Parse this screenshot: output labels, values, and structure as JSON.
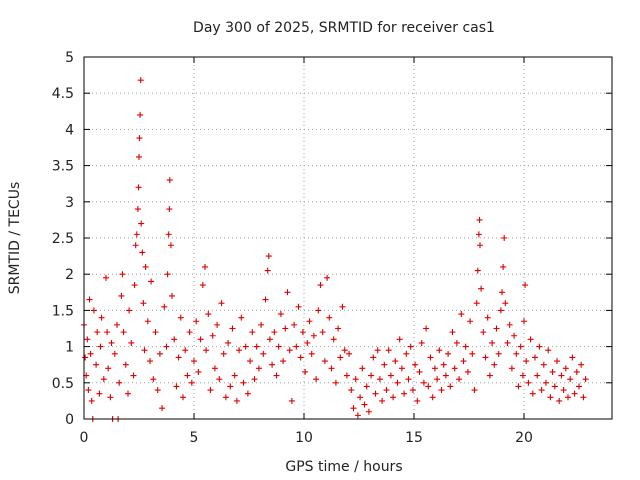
{
  "chart_data": {
    "type": "scatter",
    "title": "Day 300 of 2025, SRMTID for receiver cas1",
    "xlabel": "GPS time / hours",
    "ylabel": "SRMTID / TECUs",
    "xlim": [
      0,
      24
    ],
    "ylim": [
      0,
      5
    ],
    "x_ticks": [
      0,
      5,
      10,
      15,
      20
    ],
    "x_tick_labels": [
      "0",
      "5",
      "10",
      "15",
      "20"
    ],
    "y_ticks": [
      0,
      0.5,
      1,
      1.5,
      2,
      2.5,
      3,
      3.5,
      4,
      4.5,
      5
    ],
    "y_tick_labels": [
      "0",
      "0.5",
      "1",
      "1.5",
      "2",
      "2.5",
      "3",
      "3.5",
      "4",
      "4.5",
      "5"
    ],
    "grid": true,
    "marker": "plus",
    "series_color": "#e00000",
    "series": [
      {
        "name": "SRMTID",
        "points": [
          [
            0.0,
            1.3
          ],
          [
            0.05,
            0.85
          ],
          [
            0.1,
            0.6
          ],
          [
            0.15,
            1.1
          ],
          [
            0.2,
            0.4
          ],
          [
            0.25,
            1.65
          ],
          [
            0.3,
            0.9
          ],
          [
            0.35,
            0.25
          ],
          [
            0.4,
            0.0
          ],
          [
            0.45,
            1.5
          ],
          [
            0.55,
            0.75
          ],
          [
            0.6,
            1.2
          ],
          [
            0.7,
            0.35
          ],
          [
            0.75,
            1.0
          ],
          [
            0.8,
            1.4
          ],
          [
            0.9,
            0.55
          ],
          [
            1.0,
            1.95
          ],
          [
            1.05,
            1.2
          ],
          [
            1.1,
            0.7
          ],
          [
            1.2,
            0.3
          ],
          [
            1.25,
            1.05
          ],
          [
            1.3,
            0.0
          ],
          [
            1.4,
            0.9
          ],
          [
            1.5,
            1.3
          ],
          [
            1.55,
            0.0
          ],
          [
            1.6,
            0.5
          ],
          [
            1.7,
            1.7
          ],
          [
            1.75,
            2.0
          ],
          [
            1.8,
            1.2
          ],
          [
            1.9,
            0.75
          ],
          [
            2.0,
            0.35
          ],
          [
            2.05,
            1.5
          ],
          [
            2.15,
            1.05
          ],
          [
            2.25,
            0.6
          ],
          [
            2.3,
            1.85
          ],
          [
            2.35,
            2.4
          ],
          [
            2.4,
            2.55
          ],
          [
            2.45,
            2.9
          ],
          [
            2.48,
            3.2
          ],
          [
            2.5,
            3.62
          ],
          [
            2.52,
            3.88
          ],
          [
            2.55,
            4.2
          ],
          [
            2.58,
            4.68
          ],
          [
            2.6,
            2.7
          ],
          [
            2.65,
            2.3
          ],
          [
            2.7,
            1.6
          ],
          [
            2.75,
            0.95
          ],
          [
            2.8,
            2.1
          ],
          [
            2.9,
            1.35
          ],
          [
            3.0,
            0.8
          ],
          [
            3.05,
            1.9
          ],
          [
            3.15,
            0.55
          ],
          [
            3.25,
            1.2
          ],
          [
            3.35,
            0.4
          ],
          [
            3.45,
            0.9
          ],
          [
            3.55,
            0.15
          ],
          [
            3.65,
            1.55
          ],
          [
            3.75,
            1.0
          ],
          [
            3.8,
            2.0
          ],
          [
            3.85,
            2.55
          ],
          [
            3.88,
            2.9
          ],
          [
            3.9,
            3.3
          ],
          [
            3.95,
            2.4
          ],
          [
            4.0,
            1.7
          ],
          [
            4.1,
            1.1
          ],
          [
            4.2,
            0.45
          ],
          [
            4.3,
            0.85
          ],
          [
            4.4,
            1.4
          ],
          [
            4.5,
            0.3
          ],
          [
            4.6,
            0.95
          ],
          [
            4.7,
            0.6
          ],
          [
            4.8,
            1.2
          ],
          [
            4.9,
            0.5
          ],
          [
            5.0,
            0.8
          ],
          [
            5.1,
            1.35
          ],
          [
            5.2,
            0.65
          ],
          [
            5.3,
            1.1
          ],
          [
            5.4,
            1.85
          ],
          [
            5.5,
            2.1
          ],
          [
            5.55,
            0.95
          ],
          [
            5.65,
            1.45
          ],
          [
            5.75,
            0.4
          ],
          [
            5.85,
            1.15
          ],
          [
            5.95,
            0.7
          ],
          [
            6.05,
            1.3
          ],
          [
            6.15,
            0.55
          ],
          [
            6.25,
            1.6
          ],
          [
            6.35,
            0.9
          ],
          [
            6.45,
            0.3
          ],
          [
            6.55,
            1.05
          ],
          [
            6.65,
            0.45
          ],
          [
            6.75,
            1.25
          ],
          [
            6.85,
            0.6
          ],
          [
            6.95,
            0.25
          ],
          [
            7.05,
            0.95
          ],
          [
            7.15,
            1.4
          ],
          [
            7.25,
            0.5
          ],
          [
            7.35,
            1.0
          ],
          [
            7.45,
            0.35
          ],
          [
            7.55,
            0.8
          ],
          [
            7.65,
            1.2
          ],
          [
            7.75,
            0.55
          ],
          [
            7.85,
            1.0
          ],
          [
            7.95,
            0.7
          ],
          [
            8.05,
            1.3
          ],
          [
            8.15,
            0.9
          ],
          [
            8.25,
            1.65
          ],
          [
            8.35,
            2.05
          ],
          [
            8.4,
            2.25
          ],
          [
            8.45,
            1.1
          ],
          [
            8.55,
            0.75
          ],
          [
            8.65,
            1.2
          ],
          [
            8.75,
            0.6
          ],
          [
            8.85,
            1.0
          ],
          [
            8.95,
            1.45
          ],
          [
            9.05,
            0.8
          ],
          [
            9.15,
            1.25
          ],
          [
            9.25,
            1.75
          ],
          [
            9.35,
            0.95
          ],
          [
            9.45,
            0.25
          ],
          [
            9.55,
            1.3
          ],
          [
            9.65,
            1.0
          ],
          [
            9.75,
            1.55
          ],
          [
            9.85,
            0.85
          ],
          [
            9.95,
            1.2
          ],
          [
            10.05,
            0.65
          ],
          [
            10.15,
            1.05
          ],
          [
            10.25,
            1.35
          ],
          [
            10.35,
            0.9
          ],
          [
            10.45,
            1.15
          ],
          [
            10.55,
            0.55
          ],
          [
            10.65,
            1.5
          ],
          [
            10.75,
            1.85
          ],
          [
            10.85,
            1.2
          ],
          [
            10.95,
            0.8
          ],
          [
            11.05,
            1.95
          ],
          [
            11.15,
            1.4
          ],
          [
            11.25,
            0.7
          ],
          [
            11.35,
            1.1
          ],
          [
            11.45,
            0.5
          ],
          [
            11.55,
            1.25
          ],
          [
            11.65,
            0.85
          ],
          [
            11.75,
            1.55
          ],
          [
            11.85,
            0.95
          ],
          [
            11.95,
            0.6
          ],
          [
            12.05,
            0.9
          ],
          [
            12.15,
            0.4
          ],
          [
            12.25,
            0.15
          ],
          [
            12.35,
            0.55
          ],
          [
            12.45,
            0.05
          ],
          [
            12.55,
            0.3
          ],
          [
            12.65,
            0.7
          ],
          [
            12.75,
            0.2
          ],
          [
            12.85,
            0.45
          ],
          [
            12.95,
            0.1
          ],
          [
            13.05,
            0.6
          ],
          [
            13.15,
            0.85
          ],
          [
            13.25,
            0.35
          ],
          [
            13.35,
            0.95
          ],
          [
            13.45,
            0.55
          ],
          [
            13.55,
            0.25
          ],
          [
            13.65,
            0.75
          ],
          [
            13.75,
            0.4
          ],
          [
            13.85,
            0.95
          ],
          [
            13.95,
            0.6
          ],
          [
            14.05,
            0.3
          ],
          [
            14.15,
            0.8
          ],
          [
            14.25,
            0.5
          ],
          [
            14.35,
            1.1
          ],
          [
            14.45,
            0.7
          ],
          [
            14.55,
            0.35
          ],
          [
            14.65,
            0.9
          ],
          [
            14.75,
            0.55
          ],
          [
            14.85,
            1.0
          ],
          [
            14.95,
            0.4
          ],
          [
            15.05,
            0.75
          ],
          [
            15.15,
            0.25
          ],
          [
            15.25,
            0.65
          ],
          [
            15.35,
            1.05
          ],
          [
            15.45,
            0.5
          ],
          [
            15.55,
            1.25
          ],
          [
            15.65,
            0.45
          ],
          [
            15.75,
            0.85
          ],
          [
            15.85,
            0.3
          ],
          [
            15.95,
            0.7
          ],
          [
            16.05,
            0.55
          ],
          [
            16.15,
            0.95
          ],
          [
            16.25,
            0.4
          ],
          [
            16.35,
            0.75
          ],
          [
            16.45,
            0.6
          ],
          [
            16.55,
            0.9
          ],
          [
            16.65,
            0.45
          ],
          [
            16.75,
            1.2
          ],
          [
            16.85,
            0.7
          ],
          [
            16.95,
            1.05
          ],
          [
            17.05,
            0.55
          ],
          [
            17.15,
            1.45
          ],
          [
            17.25,
            0.8
          ],
          [
            17.35,
            1.0
          ],
          [
            17.45,
            0.65
          ],
          [
            17.55,
            1.35
          ],
          [
            17.65,
            0.9
          ],
          [
            17.75,
            0.4
          ],
          [
            17.85,
            1.6
          ],
          [
            17.9,
            2.05
          ],
          [
            17.95,
            2.55
          ],
          [
            17.98,
            2.75
          ],
          [
            18.0,
            2.4
          ],
          [
            18.05,
            1.8
          ],
          [
            18.15,
            1.2
          ],
          [
            18.25,
            0.85
          ],
          [
            18.35,
            1.4
          ],
          [
            18.45,
            0.6
          ],
          [
            18.55,
            1.05
          ],
          [
            18.65,
            0.75
          ],
          [
            18.75,
            1.25
          ],
          [
            18.85,
            0.9
          ],
          [
            18.95,
            1.5
          ],
          [
            19.0,
            1.75
          ],
          [
            19.05,
            2.1
          ],
          [
            19.1,
            2.5
          ],
          [
            19.15,
            1.6
          ],
          [
            19.25,
            1.05
          ],
          [
            19.35,
            1.3
          ],
          [
            19.45,
            0.7
          ],
          [
            19.55,
            1.15
          ],
          [
            19.65,
            0.9
          ],
          [
            19.75,
            0.45
          ],
          [
            19.85,
            1.0
          ],
          [
            19.95,
            0.6
          ],
          [
            20.0,
            1.35
          ],
          [
            20.05,
            1.85
          ],
          [
            20.1,
            0.8
          ],
          [
            20.2,
            0.5
          ],
          [
            20.3,
            1.1
          ],
          [
            20.4,
            0.35
          ],
          [
            20.5,
            0.85
          ],
          [
            20.6,
            0.6
          ],
          [
            20.7,
            1.0
          ],
          [
            20.8,
            0.4
          ],
          [
            20.9,
            0.75
          ],
          [
            21.0,
            0.5
          ],
          [
            21.1,
            0.95
          ],
          [
            21.2,
            0.3
          ],
          [
            21.3,
            0.65
          ],
          [
            21.4,
            0.45
          ],
          [
            21.5,
            0.8
          ],
          [
            21.6,
            0.25
          ],
          [
            21.7,
            0.6
          ],
          [
            21.8,
            0.4
          ],
          [
            21.9,
            0.7
          ],
          [
            22.0,
            0.3
          ],
          [
            22.1,
            0.55
          ],
          [
            22.2,
            0.85
          ],
          [
            22.3,
            0.35
          ],
          [
            22.4,
            0.65
          ],
          [
            22.5,
            0.45
          ],
          [
            22.6,
            0.75
          ],
          [
            22.7,
            0.3
          ],
          [
            22.8,
            0.55
          ]
        ]
      }
    ]
  }
}
